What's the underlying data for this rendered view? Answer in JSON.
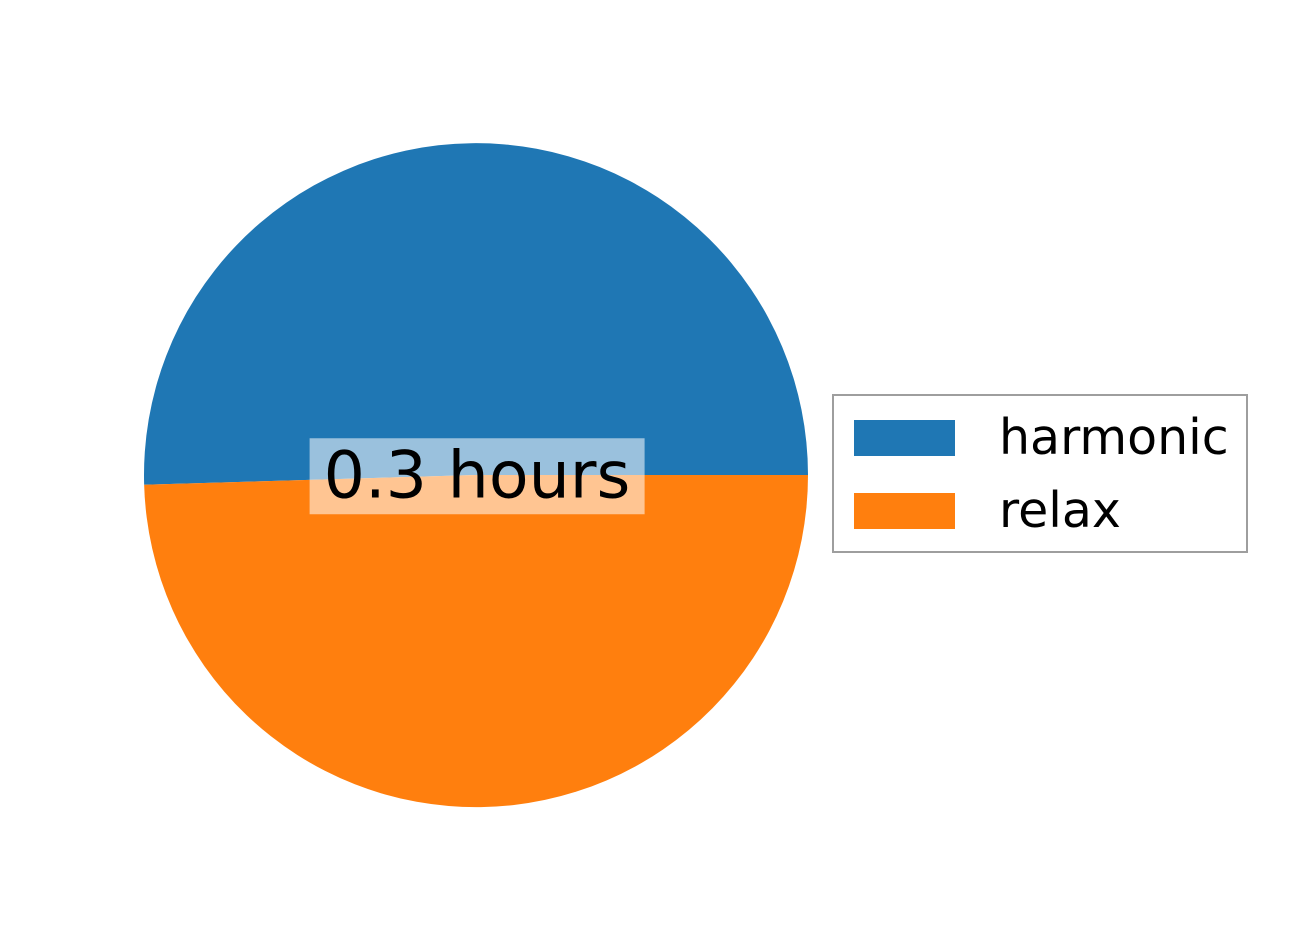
{
  "chart_data": {
    "type": "pie",
    "title": "",
    "center_label": "0.3 hours",
    "start_angle_deg": 0,
    "direction": "counterclockwise",
    "legend_position": "center-right",
    "slices": [
      {
        "label": "harmonic",
        "fraction": 0.5047,
        "color": "#1f77b4"
      },
      {
        "label": "relax",
        "fraction": 0.4953,
        "color": "#ff7f0e"
      }
    ]
  },
  "colors": {
    "background": "#ffffff",
    "center_label_bg": "rgba(255,255,255,0.55)",
    "legend_border": "#9e9e9e",
    "text": "#000000"
  }
}
